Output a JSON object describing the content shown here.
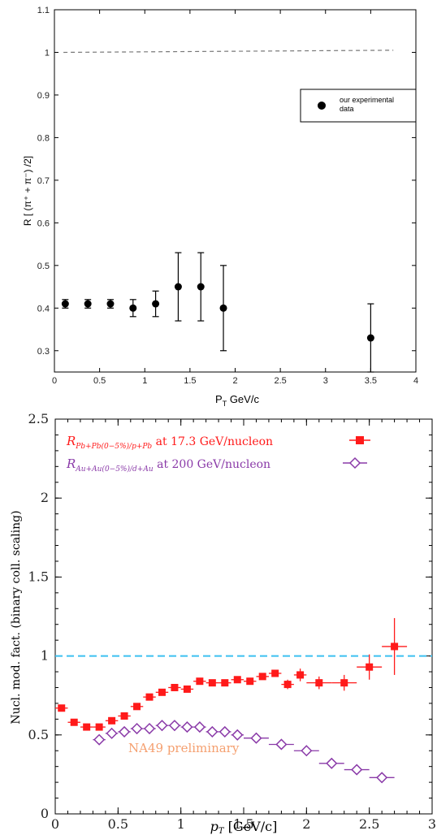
{
  "chart_data": [
    {
      "type": "scatter",
      "xlabel_main": "P",
      "xlabel_sub": "T",
      "xlabel_unit": " GeV/c",
      "ylabel": "R [ (π⁺ + π⁻) /2]",
      "xlim": [
        0,
        4
      ],
      "ylim": [
        0.25,
        1.1
      ],
      "xticks": [
        "0",
        "0.5",
        "1",
        "1.5",
        "2",
        "2.5",
        "3",
        "3.5",
        "4"
      ],
      "yticks": [
        "0.3",
        "0.4",
        "0.5",
        "0.6",
        "0.7",
        "0.8",
        "0.9",
        "1",
        "1.1"
      ],
      "reference_line": {
        "x": [
          0.1,
          3.75
        ],
        "y": [
          1.0,
          1.005
        ],
        "style": "dashed",
        "color": "#777777"
      },
      "legend": {
        "position": "top-right",
        "label": "our experimental data",
        "label_line1": "our experimental",
        "label_line2": "data"
      },
      "series": [
        {
          "name": "our experimental data",
          "color": "#000000",
          "marker": "circle",
          "x": [
            0.12,
            0.37,
            0.62,
            0.87,
            1.12,
            1.37,
            1.62,
            1.87,
            3.5
          ],
          "y": [
            0.41,
            0.41,
            0.41,
            0.4,
            0.41,
            0.45,
            0.45,
            0.4,
            0.33
          ],
          "err": [
            0.01,
            0.01,
            0.01,
            0.02,
            0.03,
            0.08,
            0.08,
            0.1,
            0.08
          ]
        }
      ]
    },
    {
      "type": "scatter",
      "xlabel": "p_T [GeV/c]",
      "ylabel": "Nucl. mod. fact. (binary coll. scaling)",
      "xlim": [
        0,
        3
      ],
      "ylim": [
        0,
        2.5
      ],
      "xticks": [
        "0",
        "0.5",
        "1",
        "1.5",
        "2",
        "2.5",
        "3"
      ],
      "yticks": [
        "0",
        "0.5",
        "1",
        "1.5",
        "2",
        "2.5"
      ],
      "reference_line": {
        "y": 1.0,
        "style": "dashed",
        "color": "#3cc0f0"
      },
      "annotation": {
        "text": "NA49 preliminary",
        "color": "#f5a070"
      },
      "legend": {
        "position": "top-left"
      },
      "series": [
        {
          "name": "R_Pb+Pb(0-5%)/p+Pb at 17.3 GeV/nucleon",
          "legend_R": "R",
          "legend_sub": "Pb+Pb(0−5%)/p+Pb",
          "legend_text": " at 17.3 GeV/nucleon",
          "color": "#ff1a1a",
          "marker": "square",
          "x": [
            0.05,
            0.15,
            0.25,
            0.35,
            0.45,
            0.55,
            0.65,
            0.75,
            0.85,
            0.95,
            1.05,
            1.15,
            1.25,
            1.35,
            1.45,
            1.55,
            1.65,
            1.75,
            1.85,
            1.95,
            2.1,
            2.3,
            2.5,
            2.7
          ],
          "y": [
            0.67,
            0.58,
            0.55,
            0.55,
            0.59,
            0.62,
            0.68,
            0.74,
            0.77,
            0.8,
            0.79,
            0.84,
            0.83,
            0.83,
            0.85,
            0.84,
            0.87,
            0.89,
            0.82,
            0.88,
            0.83,
            0.83,
            0.93,
            1.06
          ],
          "yerr": [
            0.02,
            0.02,
            0.02,
            0.02,
            0.02,
            0.02,
            0.02,
            0.02,
            0.02,
            0.02,
            0.02,
            0.02,
            0.02,
            0.02,
            0.02,
            0.02,
            0.02,
            0.02,
            0.03,
            0.04,
            0.04,
            0.05,
            0.08,
            0.18
          ],
          "xerr": [
            0.05,
            0.05,
            0.05,
            0.05,
            0.05,
            0.05,
            0.05,
            0.05,
            0.05,
            0.05,
            0.05,
            0.05,
            0.05,
            0.05,
            0.05,
            0.05,
            0.05,
            0.05,
            0.05,
            0.05,
            0.1,
            0.1,
            0.1,
            0.1
          ]
        },
        {
          "name": "R_Au+Au(0-5%)/d+Au at 200 GeV/nucleon",
          "legend_R": "R",
          "legend_sub": "Au+Au(0−5%)/d+Au",
          "legend_text": " at 200 GeV/nucleon",
          "color": "#8a3aa8",
          "marker": "open-diamond",
          "x": [
            0.35,
            0.45,
            0.55,
            0.65,
            0.75,
            0.85,
            0.95,
            1.05,
            1.15,
            1.25,
            1.35,
            1.45,
            1.6,
            1.8,
            2.0,
            2.2,
            2.4,
            2.6
          ],
          "y": [
            0.47,
            0.51,
            0.52,
            0.54,
            0.54,
            0.56,
            0.56,
            0.55,
            0.55,
            0.52,
            0.52,
            0.5,
            0.48,
            0.44,
            0.4,
            0.32,
            0.28,
            0.23
          ],
          "xerr": [
            0.05,
            0.05,
            0.05,
            0.05,
            0.05,
            0.05,
            0.05,
            0.05,
            0.05,
            0.05,
            0.05,
            0.05,
            0.1,
            0.1,
            0.1,
            0.1,
            0.1,
            0.1
          ]
        }
      ]
    }
  ]
}
